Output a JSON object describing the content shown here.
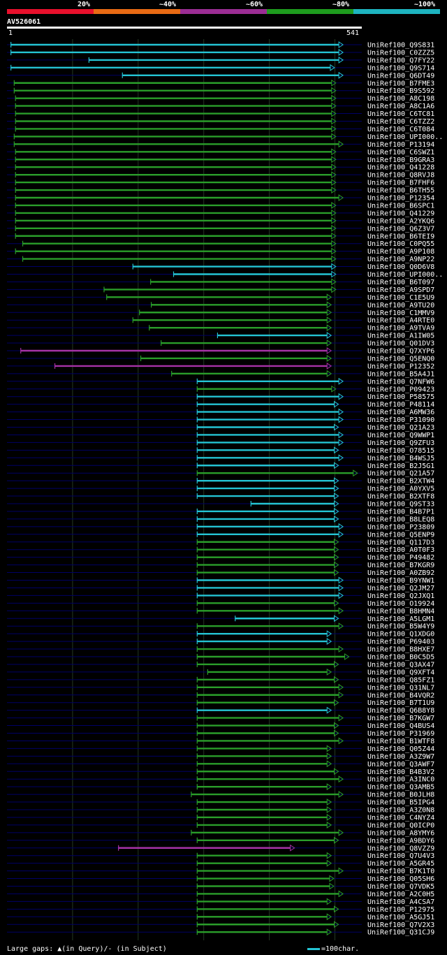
{
  "legend": {
    "labels": [
      "20%",
      "~40%",
      "~60%",
      "~80%",
      "~100%"
    ],
    "colors": [
      "#e8102c",
      "#e86a14",
      "#9b2d94",
      "#1e9c1e",
      "#1eb4c0"
    ]
  },
  "query": {
    "id": "AV526061",
    "start": "1",
    "end": "541",
    "length": 541
  },
  "colors": {
    "cyan": "#24c4d4",
    "green": "#2a9e2a",
    "purple": "#a632a6",
    "gap": "#000066",
    "grid": "#233823"
  },
  "footer": {
    "note": "Large gaps: ▲(in Query)/- (in Subject)",
    "scale": "=100char."
  },
  "chart_data": {
    "type": "alignment-overview",
    "rows": [
      {
        "label": "UniRef100_Q9S831",
        "start": 6,
        "end": 506,
        "color": "cyan",
        "cone": "fc"
      },
      {
        "label": "UniRef100_C0ZZZ5",
        "start": 6,
        "end": 506,
        "color": "cyan",
        "cone": "fc"
      },
      {
        "label": "UniRef100_Q7FY22",
        "start": 125,
        "end": 506,
        "color": "cyan",
        "cone": "fc"
      },
      {
        "label": "UniRef100_Q9S714",
        "start": 6,
        "end": 493,
        "color": "cyan",
        "cone": "fc"
      },
      {
        "label": "UniRef100_Q6DT49",
        "start": 176,
        "end": 506,
        "color": "cyan",
        "cone": "fc"
      },
      {
        "label": "UniRef100_B7FME3",
        "start": 11,
        "end": 495,
        "color": "green",
        "cone": "fc"
      },
      {
        "label": "UniRef100_B9S592",
        "start": 11,
        "end": 495,
        "color": "green",
        "cone": "fc"
      },
      {
        "label": "UniRef100_A8C198",
        "start": 13,
        "end": 495,
        "color": "green",
        "cone": "fc"
      },
      {
        "label": "UniRef100_A8C1A6",
        "start": 13,
        "end": 495,
        "color": "green",
        "cone": "fc"
      },
      {
        "label": "UniRef100_C6TC81",
        "start": 13,
        "end": 495,
        "color": "green",
        "cone": "fc"
      },
      {
        "label": "UniRef100_C6TZZ2",
        "start": 13,
        "end": 495,
        "color": "green",
        "cone": "fc"
      },
      {
        "label": "UniRef100_C6T084",
        "start": 13,
        "end": 495,
        "color": "green",
        "cone": "fc"
      },
      {
        "label": "UniRef100_UPI000..",
        "start": 11,
        "end": 495,
        "color": "green",
        "cone": "fc"
      },
      {
        "label": "UniRef100_P13194",
        "start": 11,
        "end": 506,
        "color": "green",
        "cone": "fc"
      },
      {
        "label": "UniRef100_C6SWZ1",
        "start": 13,
        "end": 495,
        "color": "green",
        "cone": "fc"
      },
      {
        "label": "UniRef100_B9GRA3",
        "start": 13,
        "end": 495,
        "color": "green",
        "cone": "fc"
      },
      {
        "label": "UniRef100_Q41228",
        "start": 13,
        "end": 495,
        "color": "green",
        "cone": "fc"
      },
      {
        "label": "UniRef100_Q8RVJ8",
        "start": 13,
        "end": 495,
        "color": "green",
        "cone": "fc"
      },
      {
        "label": "UniRef100_B7FHF6",
        "start": 13,
        "end": 495,
        "color": "green",
        "cone": "fc"
      },
      {
        "label": "UniRef100_B6TH55",
        "start": 13,
        "end": 495,
        "color": "green",
        "cone": "fc"
      },
      {
        "label": "UniRef100_P12354",
        "start": 13,
        "end": 506,
        "color": "green",
        "cone": "fc"
      },
      {
        "label": "UniRef100_B6SPC1",
        "start": 13,
        "end": 495,
        "color": "green",
        "cone": "fc"
      },
      {
        "label": "UniRef100_Q41229",
        "start": 13,
        "end": 495,
        "color": "green",
        "cone": "fc"
      },
      {
        "label": "UniRef100_A2YKQ6",
        "start": 13,
        "end": 495,
        "color": "green",
        "cone": "fc"
      },
      {
        "label": "UniRef100_Q6Z3V7",
        "start": 13,
        "end": 495,
        "color": "green",
        "cone": "fc"
      },
      {
        "label": "UniRef100_B6TEI9",
        "start": 13,
        "end": 495,
        "color": "green",
        "cone": "fc"
      },
      {
        "label": "UniRef100_C0PQ55",
        "start": 24,
        "end": 495,
        "color": "green",
        "cone": "fc"
      },
      {
        "label": "UniRef100_A9P108",
        "start": 13,
        "end": 495,
        "color": "green",
        "cone": "fc"
      },
      {
        "label": "UniRef100_A9NP22",
        "start": 24,
        "end": 495,
        "color": "green",
        "cone": "fc"
      },
      {
        "label": "UniRef100_Q0D6V8",
        "start": 192,
        "end": 495,
        "color": "cyan",
        "cone": "fc"
      },
      {
        "label": "UniRef100_UPI000..",
        "start": 254,
        "end": 495,
        "color": "cyan",
        "cone": "fc"
      },
      {
        "label": "UniRef100_B6T097",
        "start": 219,
        "end": 495,
        "color": "green",
        "cone": "fc"
      },
      {
        "label": "UniRef100_A9SPD7",
        "start": 148,
        "end": 495,
        "color": "green",
        "cone": "fc"
      },
      {
        "label": "UniRef100_C1E5U9",
        "start": 152,
        "end": 488,
        "color": "green",
        "cone": "fc"
      },
      {
        "label": "UniRef100_A9TU20",
        "start": 220,
        "end": 488,
        "color": "green",
        "cone": "fc"
      },
      {
        "label": "UniRef100_C1MMV9",
        "start": 202,
        "end": 488,
        "color": "green",
        "cone": "fc"
      },
      {
        "label": "UniRef100_A4RTE0",
        "start": 192,
        "end": 488,
        "color": "green",
        "cone": "fc"
      },
      {
        "label": "UniRef100_A9TVA9",
        "start": 217,
        "end": 488,
        "color": "green",
        "cone": "fc"
      },
      {
        "label": "UniRef100_A1IW05",
        "start": 321,
        "end": 488,
        "color": "cyan",
        "cone": "fc"
      },
      {
        "label": "UniRef100_Q01DV3",
        "start": 235,
        "end": 488,
        "color": "green",
        "cone": "fc"
      },
      {
        "label": "UniRef100_Q7XYP6",
        "start": 21,
        "end": 488,
        "color": "purple",
        "cone": "fc"
      },
      {
        "label": "UniRef100_Q5ENQ0",
        "start": 204,
        "end": 488,
        "color": "green",
        "cone": "fc"
      },
      {
        "label": "UniRef100_P12352",
        "start": 73,
        "end": 488,
        "color": "purple",
        "cone": "fc"
      },
      {
        "label": "UniRef100_B5A4J1",
        "start": 251,
        "end": 488,
        "color": "green",
        "cone": "fc"
      },
      {
        "label": "UniRef100_Q7NFW6",
        "start": 290,
        "end": 506,
        "color": "cyan",
        "cone": "fc"
      },
      {
        "label": "UniRef100_P09423",
        "start": 290,
        "end": 495,
        "color": "green",
        "cone": "fc"
      },
      {
        "label": "UniRef100_P58575",
        "start": 290,
        "end": 506,
        "color": "cyan",
        "cone": "fc"
      },
      {
        "label": "UniRef100_P48114",
        "start": 290,
        "end": 499,
        "color": "cyan",
        "cone": "fc"
      },
      {
        "label": "UniRef100_A6MW36",
        "start": 290,
        "end": 506,
        "color": "cyan",
        "cone": "fc"
      },
      {
        "label": "UniRef100_P31090",
        "start": 290,
        "end": 506,
        "color": "cyan",
        "cone": "fc"
      },
      {
        "label": "UniRef100_Q21A23",
        "start": 290,
        "end": 499,
        "color": "cyan",
        "cone": "fc"
      },
      {
        "label": "UniRef100_Q9WWP1",
        "start": 290,
        "end": 506,
        "color": "cyan",
        "cone": "fc"
      },
      {
        "label": "UniRef100_Q9ZFU3",
        "start": 290,
        "end": 506,
        "color": "cyan",
        "cone": "fc"
      },
      {
        "label": "UniRef100_O78515",
        "start": 290,
        "end": 499,
        "color": "cyan",
        "cone": "fc"
      },
      {
        "label": "UniRef100_B4WSJ5",
        "start": 290,
        "end": 506,
        "color": "cyan",
        "cone": "fc"
      },
      {
        "label": "UniRef100_B2J5G1",
        "start": 290,
        "end": 499,
        "color": "cyan",
        "cone": "fc"
      },
      {
        "label": "UniRef100_Q21A57",
        "start": 290,
        "end": 528,
        "color": "green",
        "cone": "fc"
      },
      {
        "label": "UniRef100_B2XTW4",
        "start": 290,
        "end": 499,
        "color": "cyan",
        "cone": "fc"
      },
      {
        "label": "UniRef100_A0YXV5",
        "start": 290,
        "end": 499,
        "color": "cyan",
        "cone": "fc"
      },
      {
        "label": "UniRef100_B2XTF8",
        "start": 290,
        "end": 499,
        "color": "cyan",
        "cone": "fc"
      },
      {
        "label": "UniRef100_Q9ST33",
        "start": 372,
        "end": 499,
        "color": "cyan",
        "cone": "fc"
      },
      {
        "label": "UniRef100_B4B7P1",
        "start": 290,
        "end": 499,
        "color": "cyan",
        "cone": "fc"
      },
      {
        "label": "UniRef100_B8LEQ8",
        "start": 290,
        "end": 499,
        "color": "cyan",
        "cone": "fc"
      },
      {
        "label": "UniRef100_P23809",
        "start": 290,
        "end": 506,
        "color": "cyan",
        "cone": "fc"
      },
      {
        "label": "UniRef100_Q5ENP9",
        "start": 290,
        "end": 506,
        "color": "cyan",
        "cone": "fc"
      },
      {
        "label": "UniRef100_Q117D3",
        "start": 290,
        "end": 499,
        "color": "green",
        "cone": "fc"
      },
      {
        "label": "UniRef100_A0T0F3",
        "start": 290,
        "end": 499,
        "color": "green",
        "cone": "fc"
      },
      {
        "label": "UniRef100_P49482",
        "start": 290,
        "end": 499,
        "color": "green",
        "cone": "fc"
      },
      {
        "label": "UniRef100_B7KGR9",
        "start": 290,
        "end": 499,
        "color": "green",
        "cone": "fc"
      },
      {
        "label": "UniRef100_A0ZB92",
        "start": 290,
        "end": 499,
        "color": "green",
        "cone": "fc"
      },
      {
        "label": "UniRef100_B9YNW1",
        "start": 290,
        "end": 506,
        "color": "cyan",
        "cone": "fc"
      },
      {
        "label": "UniRef100_Q2JM27",
        "start": 290,
        "end": 506,
        "color": "cyan",
        "cone": "fc"
      },
      {
        "label": "UniRef100_Q2JXQ1",
        "start": 290,
        "end": 506,
        "color": "cyan",
        "cone": "fc"
      },
      {
        "label": "UniRef100_O19924",
        "start": 290,
        "end": 499,
        "color": "green",
        "cone": "fc"
      },
      {
        "label": "UniRef100_B8HMN4",
        "start": 290,
        "end": 506,
        "color": "green",
        "cone": "fc"
      },
      {
        "label": "UniRef100_A5LGM1",
        "start": 348,
        "end": 499,
        "color": "cyan",
        "cone": "fc"
      },
      {
        "label": "UniRef100_B5W4Y9",
        "start": 290,
        "end": 506,
        "color": "green",
        "cone": "fc"
      },
      {
        "label": "UniRef100_Q1XDG0",
        "start": 290,
        "end": 488,
        "color": "cyan",
        "cone": "fc"
      },
      {
        "label": "UniRef100_P69403",
        "start": 290,
        "end": 488,
        "color": "cyan",
        "cone": "fc"
      },
      {
        "label": "UniRef100_B8HXE7",
        "start": 290,
        "end": 506,
        "color": "green",
        "cone": "fc"
      },
      {
        "label": "UniRef100_B0C5D5",
        "start": 290,
        "end": 515,
        "color": "green",
        "cone": "fc"
      },
      {
        "label": "UniRef100_Q3AX47",
        "start": 290,
        "end": 499,
        "color": "green",
        "cone": "fc"
      },
      {
        "label": "UniRef100_Q9XFT4",
        "start": 306,
        "end": 488,
        "color": "green",
        "cone": "fc"
      },
      {
        "label": "UniRef100_Q85FZ1",
        "start": 290,
        "end": 499,
        "color": "green",
        "cone": "fc"
      },
      {
        "label": "UniRef100_Q31NL7",
        "start": 290,
        "end": 506,
        "color": "green",
        "cone": "fc"
      },
      {
        "label": "UniRef100_B4VQR2",
        "start": 290,
        "end": 506,
        "color": "green",
        "cone": "fc"
      },
      {
        "label": "UniRef100_B7T1U9",
        "start": 290,
        "end": 499,
        "color": "green",
        "cone": "fc"
      },
      {
        "label": "UniRef100_Q6B8Y8",
        "start": 290,
        "end": 488,
        "color": "cyan",
        "cone": "fc"
      },
      {
        "label": "UniRef100_B7KGW7",
        "start": 290,
        "end": 506,
        "color": "green",
        "cone": "fc"
      },
      {
        "label": "UniRef100_Q4BUS4",
        "start": 290,
        "end": 499,
        "color": "green",
        "cone": "fc"
      },
      {
        "label": "UniRef100_P31969",
        "start": 290,
        "end": 499,
        "color": "green",
        "cone": "fc"
      },
      {
        "label": "UniRef100_B1WTF8",
        "start": 290,
        "end": 506,
        "color": "green",
        "cone": "fc"
      },
      {
        "label": "UniRef100_Q05Z44",
        "start": 290,
        "end": 488,
        "color": "green",
        "cone": "fc"
      },
      {
        "label": "UniRef100_A3Z9W7",
        "start": 290,
        "end": 488,
        "color": "green",
        "cone": "fc"
      },
      {
        "label": "UniRef100_Q3AWF7",
        "start": 290,
        "end": 488,
        "color": "green",
        "cone": "fc"
      },
      {
        "label": "UniRef100_B4B3V2",
        "start": 290,
        "end": 499,
        "color": "green",
        "cone": "fc"
      },
      {
        "label": "UniRef100_A3INC0",
        "start": 290,
        "end": 506,
        "color": "green",
        "cone": "fc"
      },
      {
        "label": "UniRef100_Q3AMB5",
        "start": 290,
        "end": 488,
        "color": "green",
        "cone": "fc"
      },
      {
        "label": "UniRef100_B0JLH8",
        "start": 281,
        "end": 506,
        "color": "green",
        "cone": "fc"
      },
      {
        "label": "UniRef100_B5IPG4",
        "start": 290,
        "end": 488,
        "color": "green",
        "cone": "fc"
      },
      {
        "label": "UniRef100_A3Z0N8",
        "start": 290,
        "end": 488,
        "color": "green",
        "cone": "fc"
      },
      {
        "label": "UniRef100_C4NYZ4",
        "start": 290,
        "end": 488,
        "color": "green",
        "cone": "fc"
      },
      {
        "label": "UniRef100_Q0ICP0",
        "start": 290,
        "end": 488,
        "color": "green",
        "cone": "fc"
      },
      {
        "label": "UniRef100_A8YMY6",
        "start": 281,
        "end": 506,
        "color": "green",
        "cone": "fc"
      },
      {
        "label": "UniRef100_A9BDY6",
        "start": 290,
        "end": 499,
        "color": "green",
        "cone": "fc"
      },
      {
        "label": "UniRef100_Q8VZZ9",
        "start": 170,
        "end": 432,
        "color": "purple",
        "cone": "fc"
      },
      {
        "label": "UniRef100_Q7U4V3",
        "start": 290,
        "end": 488,
        "color": "green",
        "cone": "fc"
      },
      {
        "label": "UniRef100_A5GR45",
        "start": 290,
        "end": 488,
        "color": "green",
        "cone": "fc"
      },
      {
        "label": "UniRef100_B7K1T0",
        "start": 290,
        "end": 506,
        "color": "green",
        "cone": "fc"
      },
      {
        "label": "UniRef100_Q05SH6",
        "start": 290,
        "end": 492,
        "color": "green",
        "cone": "fc"
      },
      {
        "label": "UniRef100_Q7VDK5",
        "start": 290,
        "end": 492,
        "color": "green",
        "cone": "fc"
      },
      {
        "label": "UniRef100_A2C0H5",
        "start": 290,
        "end": 506,
        "color": "green",
        "cone": "fc"
      },
      {
        "label": "UniRef100_A4CSA7",
        "start": 290,
        "end": 488,
        "color": "green",
        "cone": "fc"
      },
      {
        "label": "UniRef100_P12975",
        "start": 290,
        "end": 499,
        "color": "green",
        "cone": "fc"
      },
      {
        "label": "UniRef100_A5GJ51",
        "start": 290,
        "end": 488,
        "color": "green",
        "cone": "fc"
      },
      {
        "label": "UniRef100_Q7V2X3",
        "start": 290,
        "end": 499,
        "color": "green",
        "cone": "fc"
      },
      {
        "label": "UniRef100_Q31CJ9",
        "start": 290,
        "end": 488,
        "color": "green",
        "cone": "fc"
      }
    ]
  }
}
